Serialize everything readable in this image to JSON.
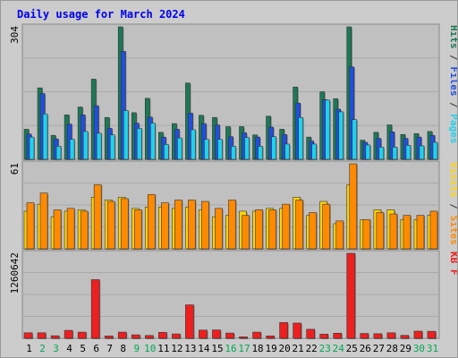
{
  "title": "Daily usage for March 2024",
  "colors": {
    "background": "#cccccc",
    "plot_bg": "#c0c0c0",
    "title": "#0000ee",
    "hits": "#1b7a55",
    "files": "#1f4fe0",
    "pages": "#1ed2ee",
    "visits": "#ffd400",
    "sites": "#ff8a00",
    "kbf": "#ee1f1f",
    "weekend_label": "#00aa55",
    "weekday_label": "#000000"
  },
  "chart_data": [
    {
      "type": "bar",
      "panel": "top",
      "ymax_label": "304",
      "right_labels": [
        {
          "text": "Pages",
          "color": "#1ed2ee"
        },
        {
          "text": " / ",
          "color": "#333333"
        },
        {
          "text": "Files",
          "color": "#1f4fe0"
        },
        {
          "text": " / ",
          "color": "#333333"
        },
        {
          "text": "Hits",
          "color": "#1b7a55"
        }
      ],
      "ylim": [
        0,
        304
      ],
      "series": [
        {
          "name": "Hits",
          "values": [
            69,
            164,
            55,
            102,
            120,
            184,
            96,
            304,
            107,
            140,
            62,
            82,
            175,
            101,
            96,
            75,
            75,
            56,
            99,
            69,
            166,
            51,
            155,
            139,
            304,
            44,
            62,
            79,
            57,
            59,
            64
          ]
        },
        {
          "name": "Files",
          "values": [
            58,
            151,
            47,
            81,
            102,
            123,
            71,
            248,
            83,
            97,
            51,
            69,
            106,
            82,
            79,
            52,
            61,
            51,
            74,
            57,
            129,
            42,
            137,
            115,
            212,
            39,
            48,
            63,
            48,
            51,
            55
          ]
        },
        {
          "name": "Pages",
          "values": [
            51,
            104,
            30,
            46,
            64,
            60,
            56,
            112,
            71,
            83,
            34,
            49,
            68,
            46,
            46,
            30,
            50,
            30,
            52,
            35,
            96,
            35,
            136,
            109,
            91,
            33,
            28,
            28,
            32,
            31,
            39
          ]
        }
      ]
    },
    {
      "type": "bar",
      "panel": "middle",
      "ymax_label": "61",
      "right_labels": [
        {
          "text": "Sites",
          "color": "#ff8a00"
        },
        {
          "text": " / ",
          "color": "#333333"
        },
        {
          "text": "Visits",
          "color": "#ffd400"
        }
      ],
      "ylim": [
        0,
        61
      ],
      "series": [
        {
          "name": "Visits",
          "values": [
            27,
            32,
            23,
            27,
            28,
            37,
            35,
            37,
            29,
            30,
            30,
            29,
            30,
            28,
            23,
            24,
            27,
            27,
            29,
            29,
            37,
            24,
            34,
            18,
            46,
            21,
            28,
            28,
            21,
            21,
            24
          ]
        },
        {
          "name": "Sites",
          "values": [
            33,
            40,
            28,
            29,
            27,
            46,
            34,
            36,
            28,
            39,
            33,
            35,
            35,
            34,
            29,
            35,
            24,
            28,
            28,
            32,
            35,
            26,
            32,
            20,
            61,
            21,
            26,
            25,
            24,
            24,
            27
          ]
        }
      ]
    },
    {
      "type": "bar",
      "panel": "bottom",
      "ymax_label": "1260642",
      "right_labels": [
        {
          "text": "KB F",
          "color": "#ee1f1f"
        }
      ],
      "ylim": [
        0,
        1260642
      ],
      "series": [
        {
          "name": "KB F",
          "values": [
            82000,
            82000,
            38000,
            118000,
            92000,
            870000,
            35000,
            92000,
            52000,
            42000,
            88000,
            65000,
            496000,
            122000,
            124000,
            78000,
            22000,
            92000,
            36000,
            234000,
            226000,
            134000,
            62000,
            76000,
            1260642,
            72000,
            68000,
            82000,
            44000,
            106000,
            104000
          ]
        }
      ]
    }
  ],
  "x_axis": {
    "days": [
      "1",
      "2",
      "3",
      "4",
      "5",
      "6",
      "7",
      "8",
      "9",
      "10",
      "11",
      "12",
      "13",
      "14",
      "15",
      "16",
      "17",
      "18",
      "19",
      "20",
      "21",
      "22",
      "23",
      "24",
      "25",
      "26",
      "27",
      "28",
      "29",
      "30",
      "31"
    ],
    "weekend_days": [
      "2",
      "3",
      "9",
      "10",
      "16",
      "17",
      "23",
      "24",
      "30",
      "31"
    ]
  }
}
